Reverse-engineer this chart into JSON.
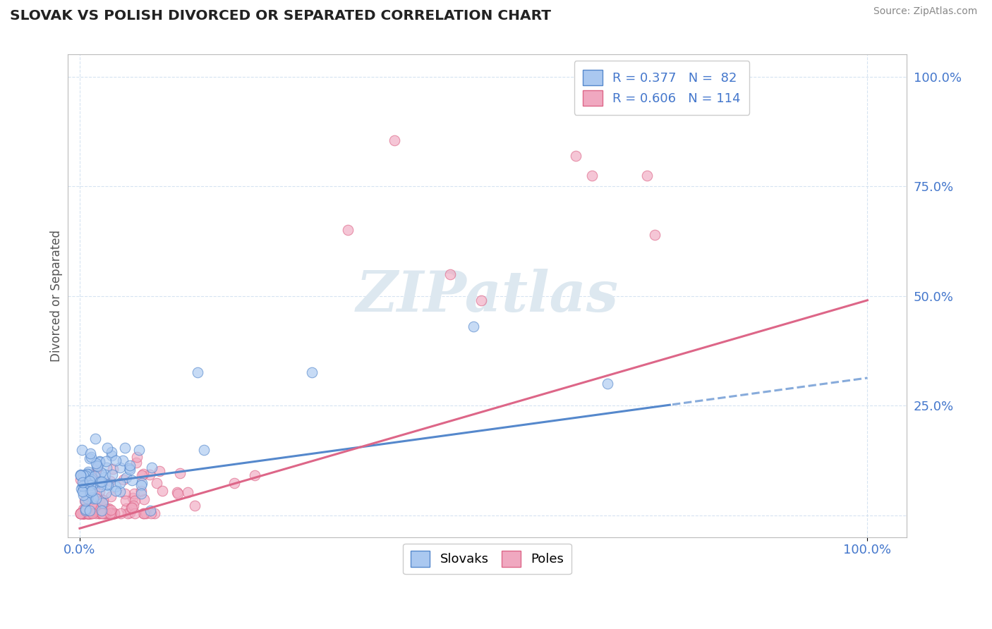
{
  "title": "SLOVAK VS POLISH DIVORCED OR SEPARATED CORRELATION CHART",
  "source": "Source: ZipAtlas.com",
  "ylabel": "Divorced or Separated",
  "color_slovak": "#aac8f0",
  "color_polish": "#f0a8c0",
  "color_trend_slovak": "#5588cc",
  "color_trend_polish": "#dd6688",
  "color_text_blue": "#4477cc",
  "watermark": "ZIPatlas",
  "watermark_color": "#dde8f0",
  "background": "#ffffff",
  "grid_color": "#ccddee",
  "legend_r1": "R = 0.377   N =  82",
  "legend_r2": "R = 0.606   N = 114"
}
